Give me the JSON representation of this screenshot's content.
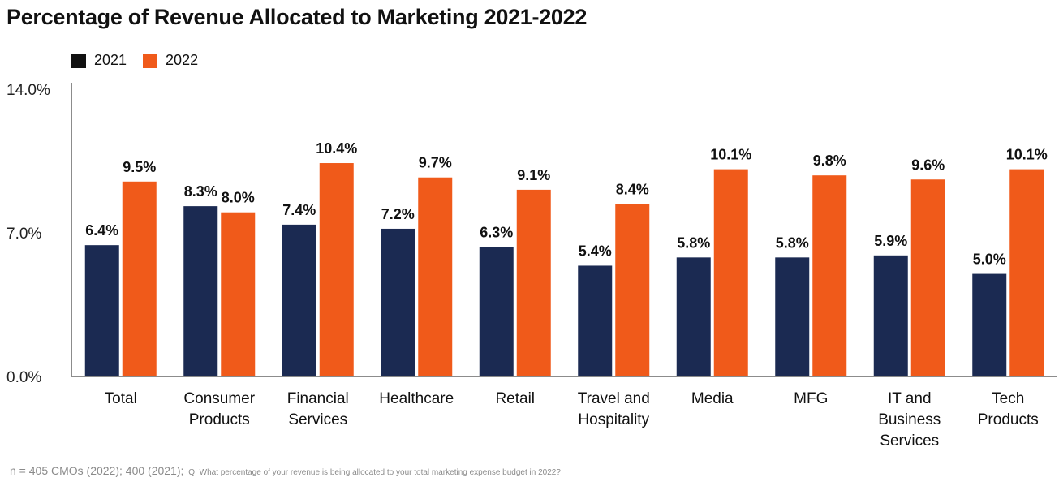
{
  "chart_data": {
    "type": "bar",
    "title": "Percentage of Revenue Allocated to Marketing 2021-2022",
    "categories": [
      [
        "Total"
      ],
      [
        "Consumer",
        "Products"
      ],
      [
        "Financial",
        "Services"
      ],
      [
        "Healthcare"
      ],
      [
        "Retail"
      ],
      [
        "Travel and",
        "Hospitality"
      ],
      [
        "Media"
      ],
      [
        "MFG"
      ],
      [
        "IT",
        "and",
        "Business",
        "Services"
      ],
      [
        "Tech",
        "Products"
      ]
    ],
    "series": [
      {
        "name": "2021",
        "color": "#1b2a52",
        "values": [
          6.4,
          8.3,
          7.4,
          7.2,
          6.3,
          5.4,
          5.8,
          5.8,
          5.9,
          5.0
        ],
        "labels": [
          "6.4%",
          "8.3%",
          "7.4%",
          "7.2%",
          "6.3%",
          "5.4%",
          "5.8%",
          "5.8%",
          "5.9%",
          "5.0%"
        ]
      },
      {
        "name": "2022",
        "color": "#f05a1a",
        "values": [
          9.5,
          8.0,
          10.4,
          9.7,
          9.1,
          8.4,
          10.1,
          9.8,
          9.6,
          10.1
        ],
        "labels": [
          "9.5%",
          "8.0%",
          "10.4%",
          "9.7%",
          "9.1%",
          "8.4%",
          "10.1%",
          "9.8%",
          "9.6%",
          "10.1%"
        ]
      }
    ],
    "ylim": [
      0,
      14
    ],
    "yticks": [
      0,
      7,
      14
    ],
    "ytick_labels": [
      "0.0%",
      "7.0%",
      "14.0%"
    ],
    "legend": {
      "placement": "top-left",
      "swatch_2021": "#111111",
      "swatch_2022": "#f05a1a"
    },
    "grid": false
  },
  "footnote": {
    "sample": "n = 405 CMOs (2022); 400 (2021);",
    "question": "Q: What percentage of your revenue is being allocated to your total marketing expense budget in 2022?"
  }
}
